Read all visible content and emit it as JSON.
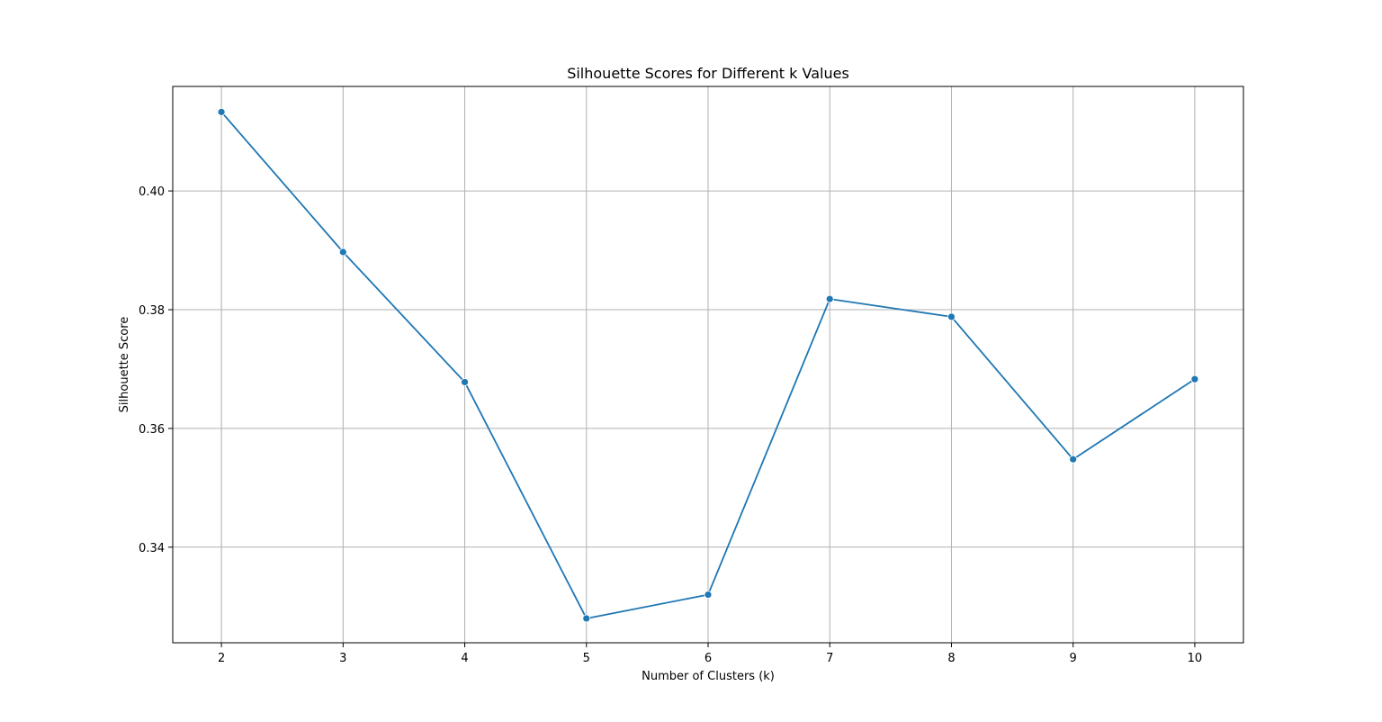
{
  "colors": {
    "line": "#1f77b4",
    "grid": "#b0b0b0",
    "frame": "#000000",
    "background": "#ffffff"
  },
  "chart_data": {
    "type": "line",
    "title": "Silhouette Scores for Different k Values",
    "xlabel": "Number of Clusters (k)",
    "ylabel": "Silhouette Score",
    "x": [
      2,
      3,
      4,
      5,
      6,
      7,
      8,
      9,
      10
    ],
    "series": [
      {
        "values": [
          0.4133,
          0.3897,
          0.3678,
          0.328,
          0.332,
          0.3818,
          0.3788,
          0.3548,
          0.3683
        ],
        "marker": "circle"
      }
    ],
    "xticks": [
      "2",
      "3",
      "4",
      "5",
      "6",
      "7",
      "8",
      "9",
      "10"
    ],
    "yticks": [
      0.34,
      0.36,
      0.38,
      0.4
    ],
    "ytick_labels": [
      "0.34",
      "0.36",
      "0.38",
      "0.40"
    ],
    "xlim": [
      1.6,
      10.4
    ],
    "ylim": [
      0.3239,
      0.4176
    ],
    "grid": true
  }
}
